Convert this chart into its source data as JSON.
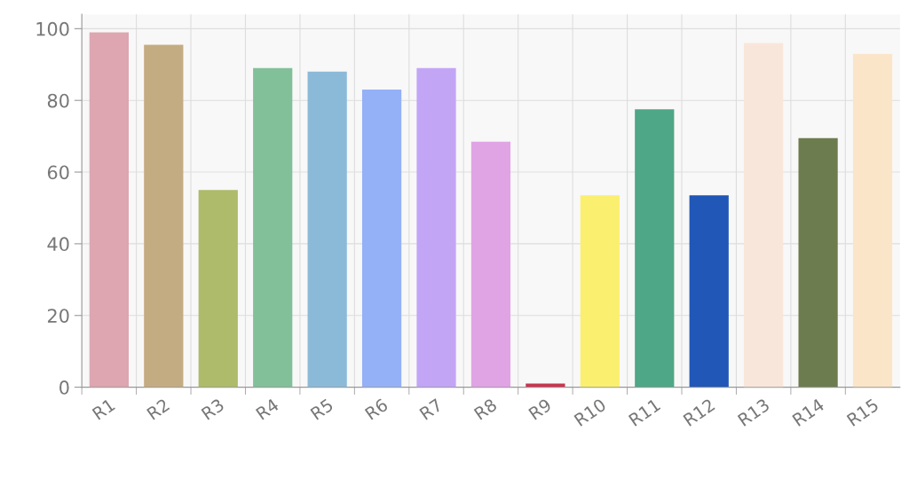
{
  "chart_data": {
    "type": "bar",
    "categories": [
      "R1",
      "R2",
      "R3",
      "R4",
      "R5",
      "R6",
      "R7",
      "R8",
      "R9",
      "R10",
      "R11",
      "R12",
      "R13",
      "R14",
      "R15"
    ],
    "values": [
      99,
      95.5,
      55,
      89,
      88,
      83,
      89,
      68.5,
      1,
      53.5,
      77.5,
      53.5,
      96,
      69.5,
      93
    ],
    "colors": [
      "#dda6b0",
      "#c4ac82",
      "#adbb6a",
      "#82c09a",
      "#8bbad9",
      "#94b1f7",
      "#c3a5f6",
      "#e0a4e5",
      "#c8354f",
      "#fbef70",
      "#4ea786",
      "#2157b6",
      "#f9e6da",
      "#6c7c4f",
      "#fbe5c8"
    ],
    "ylim": [
      0,
      104
    ],
    "yticks": [
      0,
      20,
      40,
      60,
      80,
      100
    ],
    "grid": true
  }
}
